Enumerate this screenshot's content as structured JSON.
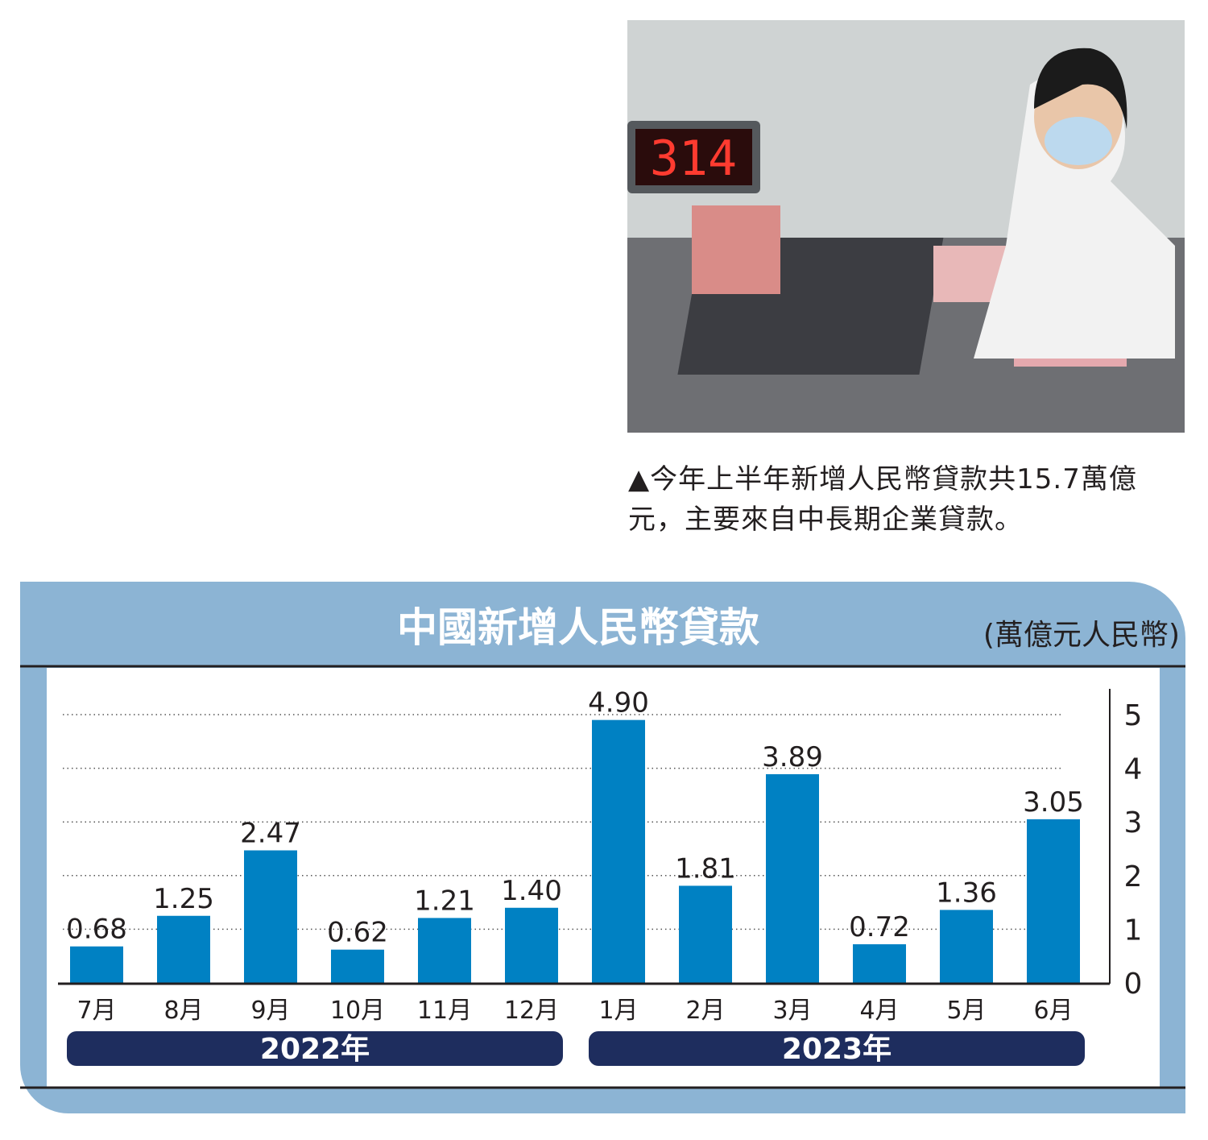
{
  "photo": {
    "led_display": "314"
  },
  "caption": {
    "text": "▲今年上半年新增人民幣貸款共15.7萬億元，主要來自中長期企業貸款。"
  },
  "chart_data": {
    "type": "bar",
    "title": "中國新增人民幣貸款",
    "unit": "(萬億元人民幣)",
    "categories": [
      "7月",
      "8月",
      "9月",
      "10月",
      "11月",
      "12月",
      "1月",
      "2月",
      "3月",
      "4月",
      "5月",
      "6月"
    ],
    "values": [
      0.68,
      1.25,
      2.47,
      0.62,
      1.21,
      1.4,
      4.9,
      1.81,
      3.89,
      0.72,
      1.36,
      3.05
    ],
    "value_labels": [
      "0.68",
      "1.25",
      "2.47",
      "0.62",
      "1.21",
      "1.40",
      "4.90",
      "1.81",
      "3.89",
      "0.72",
      "1.36",
      "3.05"
    ],
    "year_groups": [
      {
        "label": "2022年",
        "months": 6
      },
      {
        "label": "2023年",
        "months": 6
      }
    ],
    "ylim": [
      0,
      5
    ],
    "yticks": [
      "0",
      "1",
      "2",
      "3",
      "4",
      "5"
    ],
    "y_axis_position": "right",
    "grid": "dotted horizontal",
    "colors": {
      "bar": "#0081c3",
      "panel": "#8cb4d4",
      "year_band": "#1e2d5e"
    }
  }
}
